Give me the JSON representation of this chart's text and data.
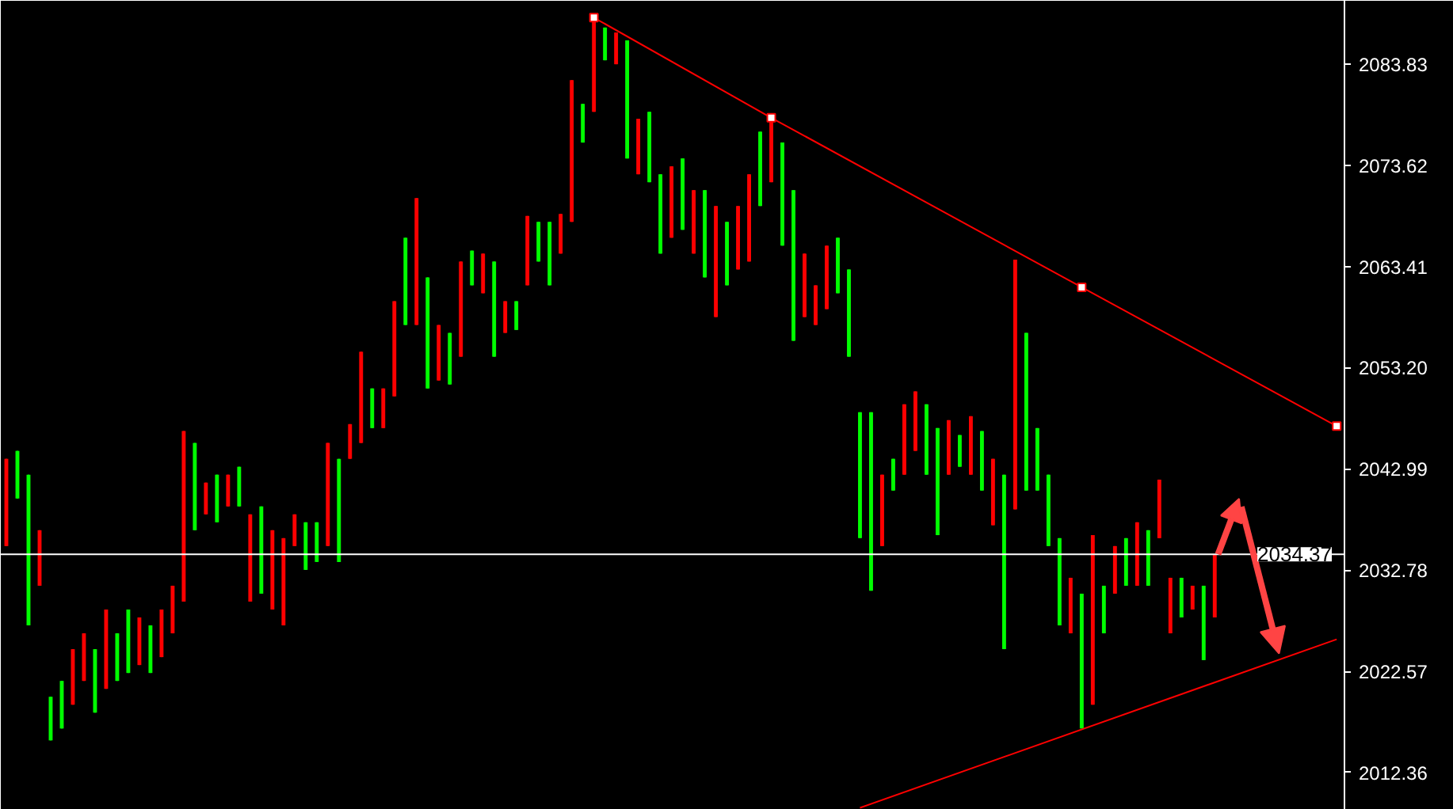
{
  "chart_data": {
    "type": "candlestick",
    "categories": [
      null,
      null,
      null,
      null,
      null,
      null,
      null,
      null,
      null,
      null,
      null,
      null,
      null,
      null,
      null,
      null,
      null,
      null,
      null,
      null,
      null,
      null,
      null,
      null,
      null,
      null,
      null,
      null,
      null,
      null,
      null,
      null,
      null,
      null,
      null,
      null,
      null,
      null,
      null,
      null,
      null,
      null,
      null,
      null,
      null,
      null,
      null,
      null,
      null,
      null,
      null,
      null,
      null,
      null,
      null,
      null,
      null,
      null,
      null,
      null,
      null,
      null,
      null,
      null,
      null,
      null,
      null,
      null,
      null,
      null,
      null,
      null,
      null,
      null,
      null,
      null,
      null,
      null,
      null,
      null,
      null,
      null,
      null,
      null,
      null,
      null,
      null,
      null,
      null,
      null,
      null,
      null,
      null,
      null,
      null,
      null,
      null,
      null,
      null,
      null,
      null,
      null,
      null,
      null,
      null,
      null,
      null,
      null,
      null,
      null,
      null,
      null,
      null,
      null,
      null,
      null,
      null,
      null,
      null,
      null,
      null
    ],
    "ohlc": [
      [
        2035.2,
        2044.0,
        2035.2,
        2044.0
      ],
      [
        2044.8,
        2044.8,
        2040.0,
        2040.0
      ],
      [
        2042.4,
        2042.4,
        2027.2,
        2027.2
      ],
      [
        2031.2,
        2036.8,
        2031.2,
        2036.8
      ],
      [
        2020.0,
        2020.0,
        2015.6,
        2015.6
      ],
      [
        2021.6,
        2021.6,
        2016.8,
        2016.8
      ],
      [
        2019.2,
        2024.8,
        2019.2,
        2024.8
      ],
      [
        2021.6,
        2026.4,
        2021.6,
        2026.4
      ],
      [
        2024.8,
        2024.8,
        2018.4,
        2018.4
      ],
      [
        2020.8,
        2028.8,
        2020.8,
        2028.8
      ],
      [
        2026.4,
        2026.4,
        2021.6,
        2021.6
      ],
      [
        2028.8,
        2028.8,
        2022.4,
        2022.4
      ],
      [
        2023.2,
        2028.0,
        2023.2,
        2028.0
      ],
      [
        2027.2,
        2027.2,
        2022.4,
        2022.4
      ],
      [
        2024.0,
        2028.8,
        2024.0,
        2028.8
      ],
      [
        2026.4,
        2031.2,
        2026.4,
        2031.2
      ],
      [
        2029.6,
        2046.8,
        2029.6,
        2046.8
      ],
      [
        2045.6,
        2045.6,
        2036.8,
        2036.8
      ],
      [
        2038.4,
        2041.6,
        2038.4,
        2041.6
      ],
      [
        2042.4,
        2042.4,
        2037.6,
        2037.6
      ],
      [
        2039.2,
        2042.4,
        2039.2,
        2042.4
      ],
      [
        2043.2,
        2043.2,
        2039.2,
        2039.2
      ],
      [
        2029.6,
        2038.4,
        2029.6,
        2038.4
      ],
      [
        2039.2,
        2039.2,
        2030.4,
        2030.4
      ],
      [
        2028.8,
        2036.8,
        2028.8,
        2036.8
      ],
      [
        2027.2,
        2036.0,
        2027.2,
        2036.0
      ],
      [
        2035.2,
        2038.4,
        2035.2,
        2038.4
      ],
      [
        2037.6,
        2037.6,
        2032.8,
        2032.8
      ],
      [
        2037.6,
        2037.6,
        2033.6,
        2033.6
      ],
      [
        2035.2,
        2045.6,
        2035.2,
        2045.6
      ],
      [
        2044.0,
        2044.0,
        2033.6,
        2033.6
      ],
      [
        2044.0,
        2047.5,
        2044.0,
        2047.5
      ],
      [
        2045.6,
        2054.8,
        2045.6,
        2054.8
      ],
      [
        2051.1,
        2051.1,
        2047.1,
        2047.1
      ],
      [
        2047.1,
        2051.1,
        2047.1,
        2051.1
      ],
      [
        2050.3,
        2059.9,
        2050.3,
        2059.9
      ],
      [
        2066.3,
        2066.3,
        2057.5,
        2057.5
      ],
      [
        2057.5,
        2070.3,
        2057.5,
        2070.3
      ],
      [
        2062.3,
        2062.3,
        2051.1,
        2051.1
      ],
      [
        2051.9,
        2057.5,
        2051.9,
        2057.5
      ],
      [
        2056.7,
        2056.7,
        2051.5,
        2051.5
      ],
      [
        2054.3,
        2063.9,
        2054.3,
        2063.9
      ],
      [
        2065.0,
        2065.0,
        2061.5,
        2061.5
      ],
      [
        2060.7,
        2064.7,
        2060.7,
        2064.7
      ],
      [
        2063.9,
        2063.9,
        2054.3,
        2054.3
      ],
      [
        2056.7,
        2059.9,
        2056.7,
        2059.9
      ],
      [
        2059.9,
        2059.9,
        2057.0,
        2057.0
      ],
      [
        2061.5,
        2068.5,
        2061.5,
        2068.5
      ],
      [
        2067.9,
        2067.9,
        2063.9,
        2063.9
      ],
      [
        2067.9,
        2067.9,
        2061.5,
        2061.5
      ],
      [
        2064.7,
        2068.7,
        2064.7,
        2068.7
      ],
      [
        2067.9,
        2082.2,
        2067.9,
        2082.2
      ],
      [
        2079.8,
        2079.8,
        2075.9,
        2075.9
      ],
      [
        2079.0,
        2088.5,
        2079.0,
        2088.5
      ],
      [
        2087.5,
        2087.5,
        2084.2,
        2084.2
      ],
      [
        2083.8,
        2087.0,
        2083.8,
        2087.0
      ],
      [
        2086.2,
        2086.2,
        2074.3,
        2074.3
      ],
      [
        2072.7,
        2078.3,
        2072.7,
        2078.3
      ],
      [
        2079.0,
        2079.0,
        2071.9,
        2071.9
      ],
      [
        2072.7,
        2072.7,
        2064.7,
        2064.7
      ],
      [
        2066.3,
        2073.5,
        2066.3,
        2073.5
      ],
      [
        2074.3,
        2074.3,
        2067.1,
        2067.1
      ],
      [
        2064.7,
        2071.1,
        2064.7,
        2071.1
      ],
      [
        2071.1,
        2071.1,
        2062.3,
        2062.3
      ],
      [
        2058.3,
        2069.5,
        2058.3,
        2069.5
      ],
      [
        2067.9,
        2067.9,
        2061.5,
        2061.5
      ],
      [
        2063.1,
        2069.5,
        2063.1,
        2069.5
      ],
      [
        2063.9,
        2072.7,
        2063.9,
        2072.7
      ],
      [
        2077.0,
        2077.0,
        2069.5,
        2069.5
      ],
      [
        2071.9,
        2078.4,
        2071.9,
        2078.4
      ],
      [
        2075.9,
        2075.9,
        2065.5,
        2065.5
      ],
      [
        2071.1,
        2071.1,
        2055.9,
        2055.9
      ],
      [
        2058.3,
        2064.7,
        2058.3,
        2064.7
      ],
      [
        2057.5,
        2061.5,
        2057.5,
        2061.5
      ],
      [
        2059.1,
        2065.5,
        2059.1,
        2065.5
      ],
      [
        2066.3,
        2066.3,
        2060.7,
        2060.7
      ],
      [
        2063.1,
        2063.1,
        2054.3,
        2054.3
      ],
      [
        2048.7,
        2048.7,
        2036.0,
        2036.0
      ],
      [
        2048.7,
        2048.7,
        2030.7,
        2030.7
      ],
      [
        2035.2,
        2042.4,
        2035.2,
        2042.4
      ],
      [
        2044.0,
        2044.0,
        2040.8,
        2040.8
      ],
      [
        2042.4,
        2049.5,
        2042.4,
        2049.5
      ],
      [
        2044.8,
        2050.8,
        2044.8,
        2050.8
      ],
      [
        2049.5,
        2049.5,
        2042.4,
        2042.4
      ],
      [
        2047.1,
        2047.1,
        2036.3,
        2036.3
      ],
      [
        2042.4,
        2047.9,
        2042.4,
        2047.9
      ],
      [
        2046.4,
        2046.4,
        2043.2,
        2043.2
      ],
      [
        2042.4,
        2048.3,
        2042.4,
        2048.3
      ],
      [
        2046.8,
        2046.8,
        2040.8,
        2040.8
      ],
      [
        2037.3,
        2044.0,
        2037.3,
        2044.0
      ],
      [
        2042.4,
        2042.4,
        2024.8,
        2024.8
      ],
      [
        2038.9,
        2064.1,
        2038.9,
        2064.1
      ],
      [
        2056.7,
        2056.7,
        2040.8,
        2040.8
      ],
      [
        2047.1,
        2047.1,
        2040.8,
        2040.8
      ],
      [
        2042.4,
        2042.4,
        2035.2,
        2035.2
      ],
      [
        2036.0,
        2036.0,
        2027.2,
        2027.2
      ],
      [
        2026.4,
        2032.0,
        2026.4,
        2032.0
      ],
      [
        2030.4,
        2030.4,
        2016.8,
        2016.8
      ],
      [
        2019.2,
        2036.3,
        2019.2,
        2036.3
      ],
      [
        2031.2,
        2031.2,
        2026.4,
        2026.4
      ],
      [
        2030.4,
        2035.2,
        2030.4,
        2035.2
      ],
      [
        2036.0,
        2036.0,
        2031.2,
        2031.2
      ],
      [
        2031.2,
        2037.6,
        2031.2,
        2037.6
      ],
      [
        2036.8,
        2036.8,
        2031.2,
        2031.2
      ],
      [
        2036.0,
        2041.9,
        2036.0,
        2041.9
      ],
      [
        2026.4,
        2032.0,
        2026.4,
        2032.0
      ],
      [
        2032.0,
        2032.0,
        2028.0,
        2028.0
      ],
      [
        2028.8,
        2031.2,
        2028.8,
        2031.2
      ],
      [
        2031.2,
        2031.2,
        2023.7,
        2023.7
      ],
      [
        2028.0,
        2034.37,
        2028.0,
        2034.37
      ],
      null,
      null,
      null,
      null,
      null,
      null,
      null,
      null,
      null,
      null,
      null
    ],
    "colors": [
      "#ff0000",
      "#00ff00",
      "#00ff00",
      "#ff0000",
      "#00ff00",
      "#00ff00",
      "#ff0000",
      "#ff0000",
      "#00ff00",
      "#ff0000",
      "#00ff00",
      "#00ff00",
      "#ff0000",
      "#00ff00",
      "#ff0000",
      "#ff0000",
      "#ff0000",
      "#00ff00",
      "#ff0000",
      "#00ff00",
      "#ff0000",
      "#00ff00",
      "#ff0000",
      "#00ff00",
      "#ff0000",
      "#ff0000",
      "#ff0000",
      "#00ff00",
      "#00ff00",
      "#ff0000",
      "#00ff00",
      "#ff0000",
      "#ff0000",
      "#00ff00",
      "#ff0000",
      "#ff0000",
      "#00ff00",
      "#ff0000",
      "#00ff00",
      "#ff0000",
      "#00ff00",
      "#ff0000",
      "#00ff00",
      "#ff0000",
      "#00ff00",
      "#ff0000",
      "#00ff00",
      "#ff0000",
      "#00ff00",
      "#00ff00",
      "#ff0000",
      "#ff0000",
      "#00ff00",
      "#ff0000",
      "#00ff00",
      "#ff0000",
      "#00ff00",
      "#ff0000",
      "#00ff00",
      "#00ff00",
      "#ff0000",
      "#00ff00",
      "#ff0000",
      "#00ff00",
      "#ff0000",
      "#00ff00",
      "#ff0000",
      "#ff0000",
      "#00ff00",
      "#ff0000",
      "#00ff00",
      "#00ff00",
      "#ff0000",
      "#ff0000",
      "#ff0000",
      "#00ff00",
      "#00ff00",
      "#00ff00",
      "#00ff00",
      "#ff0000",
      "#00ff00",
      "#ff0000",
      "#ff0000",
      "#00ff00",
      "#00ff00",
      "#ff0000",
      "#00ff00",
      "#ff0000",
      "#00ff00",
      "#ff0000",
      "#00ff00",
      "#ff0000",
      "#00ff00",
      "#00ff00",
      "#00ff00",
      "#00ff00",
      "#ff0000",
      "#00ff00",
      "#ff0000",
      "#00ff00",
      "#ff0000",
      "#00ff00",
      "#ff0000",
      "#00ff00",
      "#ff0000",
      "#ff0000",
      "#00ff00",
      "#ff0000",
      "#00ff00",
      "#ff0000",
      null,
      null,
      null,
      null,
      null,
      null,
      null,
      null,
      null,
      null,
      null
    ],
    "series": [
      {
        "type": "line",
        "color": "#ff0000",
        "marker": "square",
        "values": [
          null,
          null,
          null,
          null,
          null,
          null,
          null,
          null,
          null,
          null,
          null,
          null,
          null,
          null,
          null,
          null,
          null,
          null,
          null,
          null,
          null,
          null,
          null,
          null,
          null,
          null,
          null,
          null,
          null,
          null,
          null,
          null,
          null,
          null,
          null,
          null,
          null,
          null,
          null,
          null,
          null,
          null,
          null,
          null,
          null,
          null,
          null,
          null,
          null,
          null,
          null,
          null,
          null,
          2088.5,
          null,
          null,
          null,
          null,
          null,
          null,
          null,
          null,
          null,
          null,
          null,
          null,
          null,
          null,
          null,
          2078.4,
          null,
          null,
          null,
          null,
          null,
          null,
          null,
          null,
          null,
          null,
          null,
          null,
          null,
          null,
          null,
          null,
          null,
          null,
          null,
          null,
          null,
          null,
          null,
          null,
          null,
          null,
          null,
          2061.3,
          null,
          null,
          null,
          null,
          null,
          null,
          null,
          null,
          null,
          null,
          null,
          null,
          null,
          null,
          null,
          null,
          null,
          null,
          null,
          null,
          null,
          null,
          2047.3
        ]
      },
      {
        "type": "line",
        "color": "#ff0000",
        "values": [
          null,
          null,
          null,
          null,
          null,
          null,
          null,
          null,
          null,
          null,
          null,
          null,
          null,
          null,
          null,
          null,
          null,
          null,
          null,
          null,
          null,
          null,
          null,
          null,
          null,
          null,
          null,
          null,
          null,
          null,
          null,
          null,
          null,
          null,
          null,
          null,
          null,
          null,
          null,
          null,
          null,
          null,
          null,
          null,
          null,
          null,
          null,
          null,
          null,
          null,
          null,
          null,
          null,
          null,
          null,
          null,
          null,
          null,
          null,
          null,
          null,
          null,
          null,
          null,
          null,
          null,
          null,
          null,
          null,
          null,
          null,
          null,
          null,
          null,
          null,
          null,
          null,
          2008.8,
          null,
          null,
          null,
          null,
          null,
          null,
          null,
          null,
          null,
          null,
          null,
          null,
          null,
          null,
          null,
          null,
          null,
          null,
          null,
          null,
          null,
          null,
          null,
          null,
          null,
          null,
          null,
          null,
          null,
          null,
          null,
          null,
          null,
          null,
          null,
          null,
          null,
          null,
          null,
          null,
          null,
          null,
          2025.8
        ]
      }
    ],
    "ref_lines": [
      {
        "axis": "y",
        "value": 2034.37,
        "label": "2034.37",
        "color": "#ffffff"
      }
    ],
    "ylim": [
      2008.6,
      2090.2
    ],
    "yticks": [
      2012.36,
      2022.57,
      2032.78,
      2042.99,
      {
        "value": 2053.2,
        "label": "2053.20"
      },
      2063.41,
      2073.62,
      2083.83
    ],
    "tick_labels": "y",
    "grid": false
  }
}
